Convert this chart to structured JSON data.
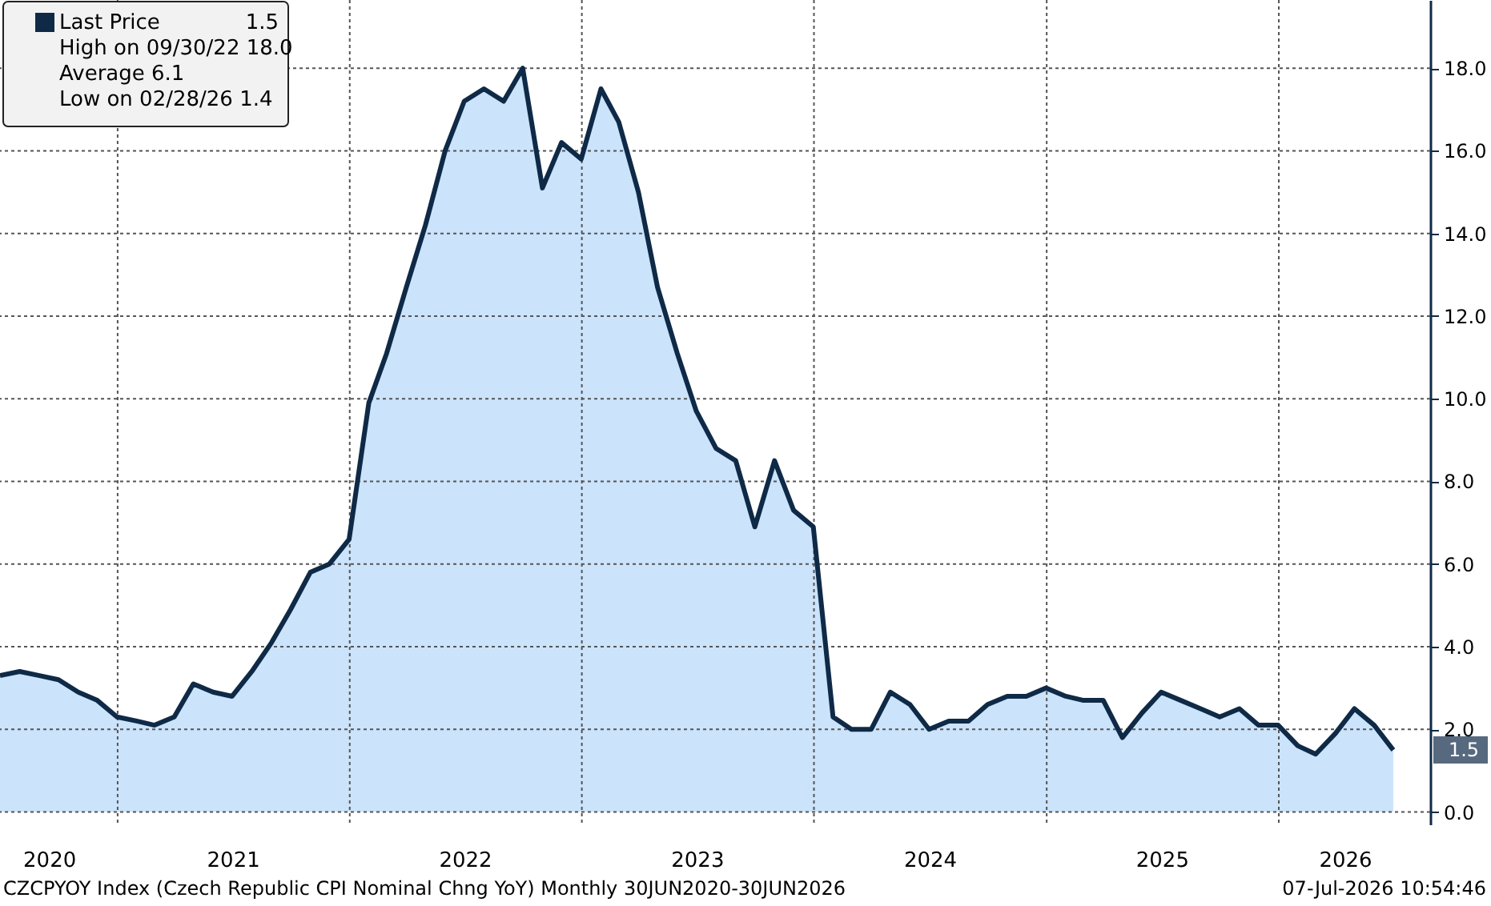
{
  "chart_data": {
    "type": "area",
    "x": [
      "2020-06-30",
      "2020-07-31",
      "2020-08-31",
      "2020-09-30",
      "2020-10-31",
      "2020-11-30",
      "2020-12-31",
      "2021-01-31",
      "2021-02-28",
      "2021-03-31",
      "2021-04-30",
      "2021-05-31",
      "2021-06-30",
      "2021-07-31",
      "2021-08-31",
      "2021-09-30",
      "2021-10-31",
      "2021-11-30",
      "2021-12-31",
      "2022-01-31",
      "2022-02-28",
      "2022-03-31",
      "2022-04-30",
      "2022-05-31",
      "2022-06-30",
      "2022-07-31",
      "2022-08-31",
      "2022-09-30",
      "2022-10-31",
      "2022-11-30",
      "2022-12-31",
      "2023-01-31",
      "2023-02-28",
      "2023-03-31",
      "2023-04-30",
      "2023-05-31",
      "2023-06-30",
      "2023-07-31",
      "2023-08-31",
      "2023-09-30",
      "2023-10-31",
      "2023-11-30",
      "2023-12-31",
      "2024-01-31",
      "2024-02-29",
      "2024-03-31",
      "2024-04-30",
      "2024-05-31",
      "2024-06-30",
      "2024-07-31",
      "2024-08-31",
      "2024-09-30",
      "2024-10-31",
      "2024-11-30",
      "2024-12-31",
      "2025-01-31",
      "2025-02-28",
      "2025-03-31",
      "2025-04-30",
      "2025-05-31",
      "2025-06-30",
      "2025-07-31",
      "2025-08-31",
      "2025-09-30",
      "2025-10-31",
      "2025-11-30",
      "2025-12-31",
      "2026-01-31",
      "2026-02-28",
      "2026-03-31",
      "2026-04-30",
      "2026-05-31",
      "2026-06-30"
    ],
    "series": [
      {
        "name": "Last Price",
        "color": "#0f2a47",
        "values": [
          3.3,
          3.4,
          3.3,
          3.2,
          2.9,
          2.7,
          2.3,
          2.2,
          2.1,
          2.3,
          3.1,
          2.9,
          2.8,
          3.4,
          4.1,
          4.9,
          5.8,
          6.0,
          6.6,
          9.9,
          11.1,
          12.7,
          14.2,
          16.0,
          17.2,
          17.5,
          17.2,
          18.0,
          15.1,
          16.2,
          15.8,
          17.5,
          16.7,
          15.0,
          12.7,
          11.1,
          9.7,
          8.8,
          8.5,
          6.9,
          8.5,
          7.3,
          6.9,
          2.3,
          2.0,
          2.0,
          2.9,
          2.6,
          2.0,
          2.2,
          2.2,
          2.6,
          2.8,
          2.8,
          3.0,
          2.8,
          2.7,
          2.7,
          1.8,
          2.4,
          2.9,
          2.7,
          2.5,
          2.3,
          2.5,
          2.1,
          2.1,
          1.6,
          1.4,
          1.9,
          2.5,
          2.1,
          1.5
        ]
      }
    ],
    "xlim": [
      "2020-06-30",
      "2026-08-27"
    ],
    "xticks": [
      {
        "value": "2020-09-15",
        "label": "2020"
      },
      {
        "value": "2021-01-01",
        "label": null
      },
      {
        "value": "2021-07-01",
        "label": "2021"
      },
      {
        "value": "2022-01-01",
        "label": null
      },
      {
        "value": "2022-07-01",
        "label": "2022"
      },
      {
        "value": "2023-01-01",
        "label": null
      },
      {
        "value": "2023-07-01",
        "label": "2023"
      },
      {
        "value": "2024-01-01",
        "label": null
      },
      {
        "value": "2024-07-01",
        "label": "2024"
      },
      {
        "value": "2025-01-01",
        "label": null
      },
      {
        "value": "2025-07-01",
        "label": "2025"
      },
      {
        "value": "2026-01-01",
        "label": null
      },
      {
        "value": "2026-04-15",
        "label": "2026"
      }
    ],
    "ylim": [
      -0.3,
      19.65
    ],
    "yticks": [
      {
        "value": 0,
        "label": "0.0"
      },
      {
        "value": 2,
        "label": "2.0"
      },
      {
        "value": 4,
        "label": "4.0"
      },
      {
        "value": 6,
        "label": "6.0"
      },
      {
        "value": 8,
        "label": "8.0"
      },
      {
        "value": 10,
        "label": "10.0"
      },
      {
        "value": 12,
        "label": "12.0"
      },
      {
        "value": 14,
        "label": "14.0"
      },
      {
        "value": 16,
        "label": "16.0"
      },
      {
        "value": 18,
        "label": "18.0"
      }
    ],
    "grid": true,
    "legend": "top left",
    "annotations": [
      "High on 09/30/22 18.0",
      "Average 6.1",
      "Low on 02/28/26 1.4",
      {
        "text": "1.5",
        "y": 1.5
      },
      "CZCPYOY Index (Czech Republic CPI Nominal Chng YoY) Monthly 30JUN2020-30JUN2026",
      "07-Jul-2026 10:54:46"
    ]
  }
}
